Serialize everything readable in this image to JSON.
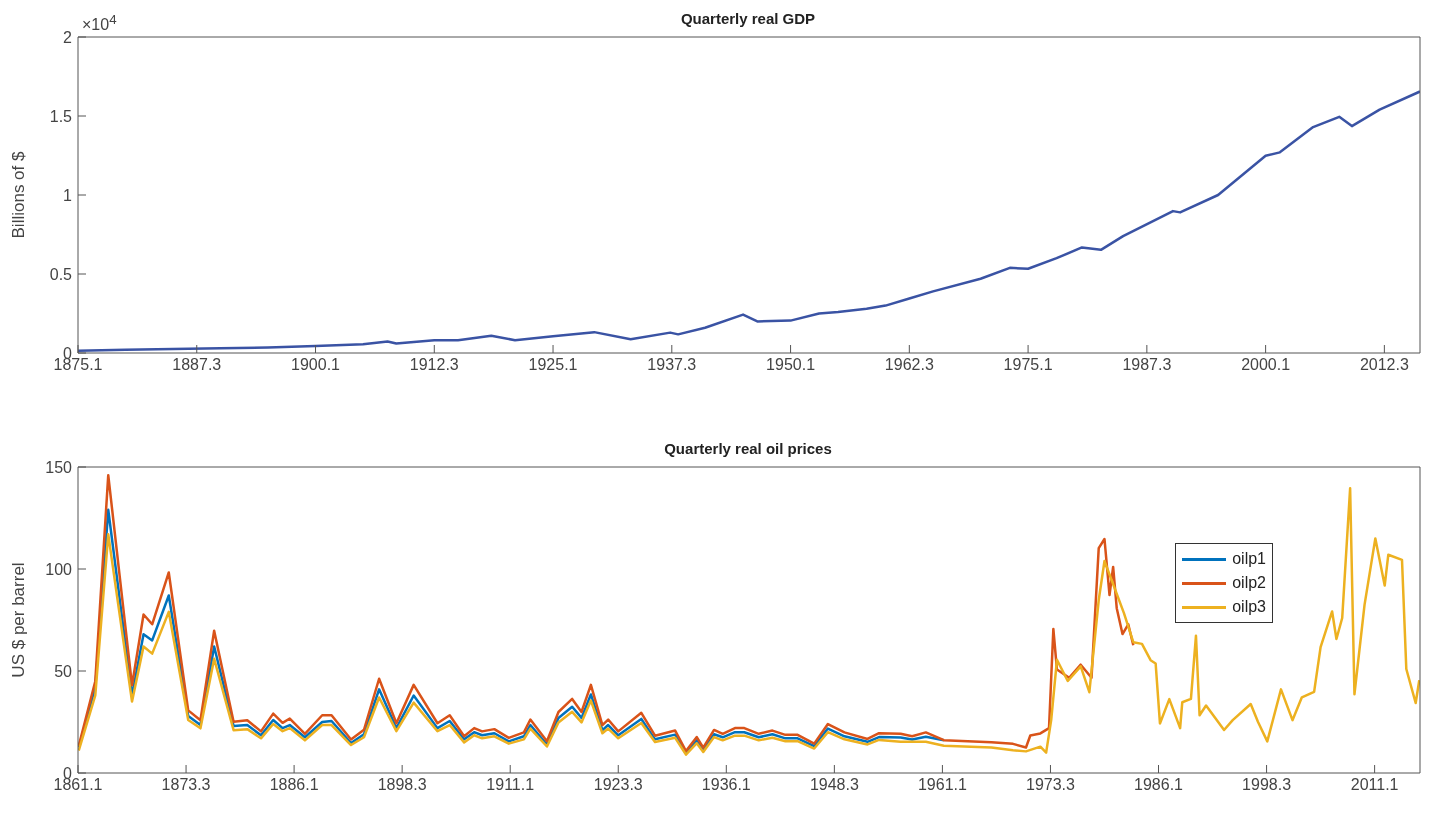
{
  "chart_data": [
    {
      "type": "line",
      "title": "Quarterly real GDP",
      "ylabel": "Billions of $",
      "annotations": [
        "×10$^{4}$"
      ],
      "xlim": [
        "1875-01",
        "2016-04"
      ],
      "xticks": [
        {
          "value": "1875-01",
          "label": "1875.1"
        },
        {
          "value": "1887-07",
          "label": "1887.3"
        },
        {
          "value": "1900-01",
          "label": "1900.1"
        },
        {
          "value": "1912-07",
          "label": "1912.3"
        },
        {
          "value": "1925-01",
          "label": "1925.1"
        },
        {
          "value": "1937-07",
          "label": "1937.3"
        },
        {
          "value": "1950-01",
          "label": "1950.1"
        },
        {
          "value": "1962-07",
          "label": "1962.3"
        },
        {
          "value": "1975-01",
          "label": "1975.1"
        },
        {
          "value": "1987-07",
          "label": "1987.3"
        },
        {
          "value": "2000-01",
          "label": "2000.1"
        },
        {
          "value": "2012-07",
          "label": "2012.3"
        }
      ],
      "ylim": [
        0,
        2
      ],
      "yticks": [
        0,
        0.5,
        1,
        1.5,
        2
      ],
      "series": [
        {
          "color": "#3a53a4",
          "x": [
            "1875-01",
            "1880-01",
            "1885-01",
            "1890-01",
            "1895-01",
            "1900-01",
            "1905-01",
            "1907-08",
            "1908-07",
            "1912-07",
            "1915-01",
            "1918-07",
            "1921-01",
            "1925-01",
            "1929-05",
            "1933-03",
            "1937-05",
            "1938-03",
            "1941-01",
            "1945-01",
            "1946-07",
            "1950-01",
            "1953-01",
            "1955-01",
            "1958-01",
            "1960-01",
            "1962-07",
            "1965-01",
            "1970-01",
            "1973-02",
            "1975-01",
            "1978-01",
            "1980-09",
            "1982-09",
            "1985-01",
            "1990-04",
            "1991-01",
            "1995-01",
            "2000-01",
            "2001-07",
            "2005-01",
            "2007-10",
            "2009-02",
            "2012-01",
            "2016-04"
          ],
          "values": [
            0.015,
            0.02,
            0.025,
            0.03,
            0.035,
            0.045,
            0.055,
            0.073,
            0.06,
            0.08,
            0.08,
            0.109,
            0.081,
            0.106,
            0.132,
            0.087,
            0.129,
            0.118,
            0.16,
            0.243,
            0.2,
            0.205,
            0.25,
            0.26,
            0.28,
            0.3,
            0.345,
            0.39,
            0.47,
            0.539,
            0.533,
            0.6,
            0.668,
            0.653,
            0.74,
            0.898,
            0.89,
            1.0,
            1.248,
            1.27,
            1.43,
            1.495,
            1.436,
            1.54,
            1.655
          ]
        }
      ]
    },
    {
      "type": "line",
      "title": "Quarterly real oil prices",
      "ylabel": "US $ per barrel",
      "legend": "right",
      "xlim": [
        "1861-01",
        "2016-04"
      ],
      "xticks": [
        {
          "value": "1861-01",
          "label": "1861.1"
        },
        {
          "value": "1873-07",
          "label": "1873.3"
        },
        {
          "value": "1886-01",
          "label": "1886.1"
        },
        {
          "value": "1898-07",
          "label": "1898.3"
        },
        {
          "value": "1911-01",
          "label": "1911.1"
        },
        {
          "value": "1923-07",
          "label": "1923.3"
        },
        {
          "value": "1936-01",
          "label": "1936.1"
        },
        {
          "value": "1948-07",
          "label": "1948.3"
        },
        {
          "value": "1961-01",
          "label": "1961.1"
        },
        {
          "value": "1973-07",
          "label": "1973.3"
        },
        {
          "value": "1986-01",
          "label": "1986.1"
        },
        {
          "value": "1998-07",
          "label": "1998.3"
        },
        {
          "value": "2011-01",
          "label": "2011.1"
        }
      ],
      "ylim": [
        0,
        150
      ],
      "yticks": [
        0,
        50,
        100,
        150
      ],
      "series": [
        {
          "name": "oilp1",
          "color": "#0072bd",
          "x": [
            "1861-02",
            "1863-01",
            "1864-07",
            "1867-04",
            "1868-08",
            "1869-08",
            "1871-07",
            "1873-10",
            "1875-03",
            "1876-10",
            "1879-01",
            "1880-08",
            "1882-03",
            "1883-08",
            "1884-09",
            "1885-07",
            "1887-04",
            "1889-04",
            "1890-05",
            "1892-08",
            "1894-02",
            "1895-11",
            "1897-11",
            "1899-11",
            "1902-08",
            "1904-01",
            "1905-09",
            "1906-11",
            "1907-10",
            "1909-03",
            "1910-11",
            "1912-08",
            "1913-05",
            "1915-04",
            "1916-08",
            "1918-03",
            "1919-04",
            "1920-05",
            "1921-09",
            "1922-05",
            "1923-07",
            "1926-03",
            "1927-10",
            "1930-02",
            "1931-05",
            "1932-08",
            "1933-05",
            "1934-08",
            "1935-08",
            "1937-01",
            "1938-02",
            "1939-10",
            "1941-05",
            "1942-11",
            "1944-04",
            "1946-03",
            "1947-10",
            "1949-09",
            "1952-05",
            "1953-09",
            "1956-03",
            "1957-07",
            "1959-02",
            "1961-03"
          ],
          "values": [
            12.5,
            42,
            129,
            38,
            68,
            65,
            87,
            28,
            23.5,
            62,
            23,
            23.5,
            18.5,
            26,
            22,
            23.5,
            17.5,
            25,
            25.5,
            14.7,
            19,
            41,
            22,
            38,
            22,
            25.5,
            16.5,
            20,
            18.5,
            19.5,
            15.5,
            18,
            23.5,
            14,
            27,
            32.5,
            27,
            38.5,
            21,
            23.5,
            18.5,
            26.5,
            16.5,
            18.8,
            9.8,
            16,
            11.3,
            19,
            17.5,
            20,
            20,
            17.5,
            19,
            17,
            17,
            13.2,
            21.8,
            18,
            15.3,
            17.6,
            17.4,
            16.4,
            17.8,
            16.1
          ]
        },
        {
          "name": "oilp2",
          "color": "#d95319",
          "x": [
            "1861-02",
            "1863-01",
            "1864-07",
            "1867-04",
            "1868-08",
            "1869-08",
            "1871-07",
            "1873-10",
            "1875-03",
            "1876-10",
            "1879-01",
            "1880-08",
            "1882-03",
            "1883-08",
            "1884-09",
            "1885-07",
            "1887-04",
            "1889-04",
            "1890-05",
            "1892-08",
            "1894-02",
            "1895-11",
            "1897-11",
            "1899-11",
            "1902-08",
            "1904-01",
            "1905-09",
            "1906-11",
            "1907-10",
            "1909-03",
            "1910-11",
            "1912-08",
            "1913-05",
            "1915-04",
            "1916-08",
            "1918-03",
            "1919-04",
            "1920-05",
            "1921-09",
            "1922-05",
            "1923-07",
            "1926-03",
            "1927-10",
            "1930-02",
            "1931-05",
            "1932-08",
            "1933-05",
            "1934-08",
            "1935-08",
            "1937-01",
            "1938-02",
            "1939-10",
            "1941-05",
            "1942-11",
            "1944-04",
            "1946-03",
            "1947-10",
            "1949-09",
            "1952-05",
            "1953-09",
            "1956-03",
            "1957-07",
            "1959-02",
            "1961-03",
            "1966-09",
            "1969-03",
            "1970-09",
            "1971-03",
            "1972-05",
            "1973-05",
            "1973-11",
            "1974-04",
            "1975-09",
            "1977-01",
            "1978-04",
            "1979-02",
            "1979-10",
            "1980-05",
            "1980-10",
            "1981-03",
            "1981-11",
            "1982-07",
            "1983-02"
          ],
          "values": [
            13.2,
            45,
            146,
            43,
            77.7,
            72.9,
            98.3,
            30.7,
            25.9,
            69.7,
            25.1,
            25.9,
            20.4,
            29.1,
            24.6,
            26.7,
            19.2,
            28.3,
            28.3,
            16.4,
            21.2,
            46.2,
            24.4,
            43.2,
            24.4,
            28.3,
            18,
            22,
            20.4,
            21.5,
            17.2,
            19.9,
            26.2,
            15.6,
            29.9,
            36.3,
            29.9,
            43.2,
            23.5,
            26.2,
            20.4,
            29.5,
            18.3,
            20.8,
            10.8,
            17.6,
            12.4,
            21.1,
            19.2,
            22,
            22,
            19.2,
            20.8,
            18.7,
            18.7,
            14.4,
            24,
            19.9,
            16.7,
            19.5,
            19.2,
            18,
            19.9,
            16.1,
            15.1,
            14.3,
            12.5,
            18.4,
            19.4,
            22,
            70.6,
            50.7,
            46.7,
            53.1,
            46.7,
            110.2,
            114.7,
            87.2,
            101,
            80.8,
            68.1,
            72.9,
            62.6
          ]
        },
        {
          "name": "oilp3",
          "color": "#edb120",
          "x": [
            "1861-02",
            "1863-01",
            "1864-07",
            "1867-04",
            "1868-08",
            "1869-08",
            "1871-07",
            "1873-10",
            "1875-03",
            "1876-10",
            "1879-01",
            "1880-08",
            "1882-03",
            "1883-08",
            "1884-09",
            "1885-07",
            "1887-04",
            "1889-04",
            "1890-05",
            "1892-08",
            "1894-02",
            "1895-11",
            "1897-11",
            "1899-11",
            "1902-08",
            "1904-01",
            "1905-09",
            "1906-11",
            "1907-10",
            "1909-03",
            "1910-11",
            "1912-08",
            "1913-05",
            "1915-04",
            "1916-08",
            "1918-03",
            "1919-04",
            "1920-05",
            "1921-09",
            "1922-05",
            "1923-07",
            "1926-03",
            "1927-10",
            "1930-02",
            "1931-05",
            "1932-08",
            "1933-05",
            "1934-08",
            "1935-08",
            "1937-01",
            "1938-02",
            "1939-10",
            "1941-05",
            "1942-11",
            "1944-04",
            "1946-03",
            "1947-10",
            "1949-09",
            "1952-05",
            "1953-09",
            "1956-03",
            "1957-07",
            "1959-02",
            "1961-03",
            "1966-09",
            "1969-03",
            "1970-09",
            "1972-05",
            "1973-01",
            "1973-08",
            "1974-04",
            "1975-07",
            "1977-01",
            "1978-01",
            "1979-02",
            "1979-10",
            "1982-01",
            "1983-02",
            "1984-02",
            "1985-02",
            "1985-09",
            "1986-03",
            "1987-04",
            "1988-07",
            "1988-10",
            "1989-10",
            "1990-05",
            "1990-10",
            "1991-07",
            "1993-08",
            "1994-08",
            "1996-09",
            "1997-07",
            "1998-08",
            "2000-03",
            "2001-07",
            "2002-08",
            "2004-01",
            "2004-10",
            "2006-02",
            "2006-08",
            "2007-04",
            "2008-03",
            "2008-09",
            "2009-11",
            "2011-02",
            "2012-03",
            "2012-08",
            "2014-03",
            "2014-09",
            "2015-10",
            "2016-03"
          ],
          "values": [
            11,
            38,
            117,
            35,
            62,
            58.5,
            79,
            26,
            21.9,
            56,
            21,
            21.5,
            17,
            24,
            20.5,
            22,
            16,
            23.5,
            23.5,
            13.7,
            17.5,
            37,
            20.5,
            34.5,
            20.5,
            23.5,
            15,
            18.5,
            17,
            18,
            14.4,
            16.5,
            21.8,
            13,
            24.8,
            30,
            24.8,
            35.5,
            19.5,
            21.8,
            17,
            24.5,
            15.2,
            17.3,
            9,
            14.6,
            10.3,
            17.6,
            16,
            18.3,
            18.3,
            16,
            17.3,
            15.6,
            15.6,
            12,
            20,
            16.5,
            14,
            16.2,
            15.3,
            15.3,
            15.3,
            13.4,
            12.5,
            11.1,
            10.6,
            12.9,
            10,
            25.9,
            55.5,
            45.1,
            52.3,
            39.6,
            84.8,
            103.9,
            78.4,
            64.1,
            63.3,
            55.3,
            53.7,
            24.3,
            36.2,
            22,
            34.7,
            36.3,
            67.3,
            28.3,
            33.1,
            21.1,
            25.9,
            33.8,
            25.1,
            15.5,
            41,
            25.9,
            37.1,
            39.8,
            61.7,
            79.2,
            65.7,
            76,
            139.6,
            38.6,
            82.4,
            115,
            91.9,
            107,
            104.5,
            51,
            34.3,
            45.5
          ]
        }
      ]
    }
  ]
}
